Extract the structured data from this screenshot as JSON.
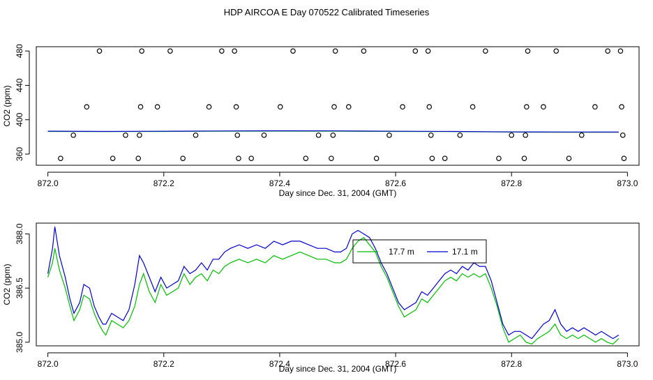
{
  "title": "HDP AIRCOA E  Day 070522  Calibrated Timeseries",
  "colors": {
    "series_17_7": "#00bb00",
    "series_17_1": "#0000cc",
    "markers": "#000000"
  },
  "chart_data": [
    {
      "type": "scatter",
      "xlabel": "Day since Dec. 31, 2004 (GMT)",
      "ylabel": "CO2 (ppm)",
      "xlim": [
        871.98,
        873.02
      ],
      "ylim": [
        347,
        485
      ],
      "xticks": [
        872.0,
        872.2,
        872.4,
        872.6,
        872.8,
        873.0
      ],
      "xtick_labels": [
        "872.0",
        "872.2",
        "872.4",
        "872.6",
        "872.8",
        "873.0"
      ],
      "yticks": [
        360,
        400,
        440,
        480
      ],
      "ytick_labels": [
        "360",
        "400",
        "440",
        "480"
      ],
      "series": [
        {
          "marker": "open-circle",
          "x": [
            872.022,
            872.044,
            872.067,
            872.089,
            872.112,
            872.134,
            872.156,
            872.158,
            872.16,
            872.162,
            872.189,
            872.211,
            872.233,
            872.255,
            872.278,
            872.3,
            872.322,
            872.325,
            872.327,
            872.329,
            872.351,
            872.373,
            872.401,
            872.423,
            872.445,
            872.467,
            872.489,
            872.492,
            872.494,
            872.496,
            872.519,
            872.545,
            872.567,
            872.589,
            872.612,
            872.634,
            872.656,
            872.658,
            872.661,
            872.663,
            872.685,
            872.711,
            872.733,
            872.755,
            872.778,
            872.8,
            872.822,
            872.824,
            872.826,
            872.828,
            872.855,
            872.877,
            872.899,
            872.921,
            872.944,
            872.966,
            872.988,
            872.99,
            872.992,
            872.994
          ],
          "values": [
            355,
            382,
            415,
            480,
            355,
            382,
            355,
            382,
            415,
            480,
            415,
            480,
            355,
            382,
            415,
            480,
            480,
            415,
            382,
            355,
            355,
            382,
            415,
            480,
            355,
            382,
            355,
            382,
            415,
            480,
            415,
            480,
            355,
            382,
            415,
            480,
            480,
            415,
            382,
            355,
            355,
            382,
            415,
            480,
            355,
            382,
            355,
            382,
            415,
            480,
            415,
            480,
            355,
            382,
            415,
            480,
            480,
            415,
            382,
            355
          ]
        },
        {
          "name": "17.7 m",
          "x": [
            872.0,
            872.1,
            872.2,
            872.3,
            872.4,
            872.5,
            872.6,
            872.7,
            872.8,
            872.9,
            872.985
          ],
          "values": [
            386.4,
            386.2,
            386.4,
            386.6,
            386.8,
            386.7,
            386.4,
            386.2,
            385.6,
            385.5,
            385.4
          ]
        },
        {
          "name": "17.1 m",
          "x": [
            872.0,
            872.1,
            872.2,
            872.3,
            872.4,
            872.5,
            872.6,
            872.7,
            872.8,
            872.9,
            872.985
          ],
          "values": [
            386.7,
            386.4,
            386.6,
            386.9,
            387.1,
            387.0,
            386.6,
            386.4,
            385.8,
            385.7,
            385.6
          ]
        }
      ]
    },
    {
      "type": "line",
      "xlabel": "Day since Dec. 31, 2004 (GMT)",
      "ylabel": "CO2 (ppm)",
      "xlim": [
        871.98,
        873.02
      ],
      "ylim": [
        384.9,
        388.3
      ],
      "xticks": [
        872.0,
        872.2,
        872.4,
        872.6,
        872.8,
        873.0
      ],
      "xtick_labels": [
        "872.0",
        "872.2",
        "872.4",
        "872.6",
        "872.8",
        "873.0"
      ],
      "yticks": [
        385.0,
        386.5,
        388.0
      ],
      "ytick_labels": [
        "385.0",
        "386.5",
        "388.0"
      ],
      "legend": {
        "position": "top-center",
        "entries": [
          "17.7 m",
          "17.1 m"
        ]
      },
      "series": [
        {
          "name": "17.7 m",
          "x": [
            872.0,
            872.008,
            872.012,
            872.02,
            872.03,
            872.038,
            872.045,
            872.055,
            872.062,
            872.072,
            872.08,
            872.088,
            872.095,
            872.1,
            872.11,
            872.12,
            872.13,
            872.14,
            872.15,
            872.158,
            872.165,
            872.175,
            872.185,
            872.195,
            872.205,
            872.215,
            872.225,
            872.235,
            872.245,
            872.255,
            872.265,
            872.275,
            872.285,
            872.295,
            872.305,
            872.315,
            872.33,
            872.345,
            872.36,
            872.375,
            872.39,
            872.405,
            872.42,
            872.435,
            872.45,
            872.465,
            872.48,
            872.495,
            872.505,
            872.515,
            872.525,
            872.535,
            872.545,
            872.555,
            872.565,
            872.575,
            872.585,
            872.595,
            872.605,
            872.615,
            872.625,
            872.635,
            872.645,
            872.655,
            872.665,
            872.675,
            872.685,
            872.695,
            872.705,
            872.715,
            872.725,
            872.735,
            872.745,
            872.755,
            872.765,
            872.775,
            872.785,
            872.795,
            872.805,
            872.815,
            872.825,
            872.835,
            872.845,
            872.855,
            872.865,
            872.875,
            872.885,
            872.895,
            872.905,
            872.915,
            872.925,
            872.935,
            872.945,
            872.955,
            872.965,
            872.975,
            872.985
          ],
          "values": [
            386.8,
            387.2,
            387.6,
            387.0,
            386.5,
            386.0,
            385.6,
            385.9,
            386.3,
            386.2,
            385.8,
            385.5,
            385.3,
            385.2,
            385.6,
            385.5,
            385.4,
            385.6,
            386.0,
            386.6,
            386.9,
            386.4,
            386.1,
            386.6,
            386.3,
            386.4,
            386.5,
            386.9,
            386.6,
            386.8,
            386.9,
            386.7,
            387.0,
            386.9,
            387.1,
            387.2,
            387.3,
            387.2,
            387.3,
            387.2,
            387.4,
            387.3,
            387.4,
            387.5,
            387.4,
            387.3,
            387.3,
            387.2,
            387.2,
            387.3,
            387.6,
            387.8,
            387.9,
            387.7,
            387.5,
            387.1,
            386.8,
            386.4,
            386.0,
            385.7,
            385.8,
            385.9,
            386.2,
            386.1,
            386.3,
            386.5,
            386.7,
            386.8,
            386.7,
            386.9,
            386.8,
            386.9,
            386.8,
            386.9,
            386.5,
            386.0,
            385.4,
            385.0,
            385.1,
            385.2,
            385.0,
            384.95,
            385.1,
            385.2,
            385.3,
            385.5,
            385.2,
            385.1,
            385.2,
            385.1,
            385.2,
            385.1,
            385.0,
            385.1,
            385.0,
            384.95,
            385.1
          ]
        },
        {
          "name": "17.1 m",
          "x": [
            872.0,
            872.008,
            872.012,
            872.02,
            872.03,
            872.038,
            872.045,
            872.055,
            872.062,
            872.072,
            872.08,
            872.088,
            872.095,
            872.1,
            872.11,
            872.12,
            872.13,
            872.14,
            872.15,
            872.158,
            872.165,
            872.175,
            872.185,
            872.195,
            872.205,
            872.215,
            872.225,
            872.235,
            872.245,
            872.255,
            872.265,
            872.275,
            872.285,
            872.295,
            872.305,
            872.315,
            872.33,
            872.345,
            872.36,
            872.375,
            872.39,
            872.405,
            872.42,
            872.435,
            872.45,
            872.465,
            872.48,
            872.495,
            872.505,
            872.515,
            872.525,
            872.535,
            872.545,
            872.555,
            872.565,
            872.575,
            872.585,
            872.595,
            872.605,
            872.615,
            872.625,
            872.635,
            872.645,
            872.655,
            872.665,
            872.675,
            872.685,
            872.695,
            872.705,
            872.715,
            872.725,
            872.735,
            872.745,
            872.755,
            872.765,
            872.775,
            872.785,
            872.795,
            872.805,
            872.815,
            872.825,
            872.835,
            872.845,
            872.855,
            872.865,
            872.875,
            872.885,
            872.895,
            872.905,
            872.915,
            872.925,
            872.935,
            872.945,
            872.955,
            872.965,
            872.975,
            872.985
          ],
          "values": [
            386.9,
            387.6,
            388.2,
            387.4,
            386.8,
            386.2,
            385.8,
            386.1,
            386.6,
            386.5,
            386.0,
            385.7,
            385.5,
            385.5,
            385.8,
            385.7,
            385.6,
            385.9,
            386.6,
            387.4,
            387.2,
            386.8,
            386.4,
            386.8,
            386.5,
            386.6,
            386.7,
            387.1,
            386.9,
            387.0,
            387.2,
            387.0,
            387.3,
            387.3,
            387.5,
            387.6,
            387.7,
            387.6,
            387.7,
            387.6,
            387.8,
            387.7,
            387.8,
            387.8,
            387.7,
            387.6,
            387.6,
            387.5,
            387.5,
            387.6,
            388.0,
            388.1,
            388.0,
            387.9,
            387.6,
            387.2,
            386.9,
            386.5,
            386.1,
            385.9,
            386.0,
            386.1,
            386.4,
            386.3,
            386.5,
            386.7,
            386.9,
            387.0,
            386.9,
            387.1,
            387.0,
            387.2,
            387.1,
            387.1,
            386.7,
            386.1,
            385.5,
            385.2,
            385.3,
            385.3,
            385.2,
            385.1,
            385.3,
            385.5,
            385.6,
            385.9,
            385.5,
            385.3,
            385.4,
            385.3,
            385.4,
            385.3,
            385.2,
            385.3,
            385.2,
            385.1,
            385.2
          ]
        }
      ]
    }
  ]
}
